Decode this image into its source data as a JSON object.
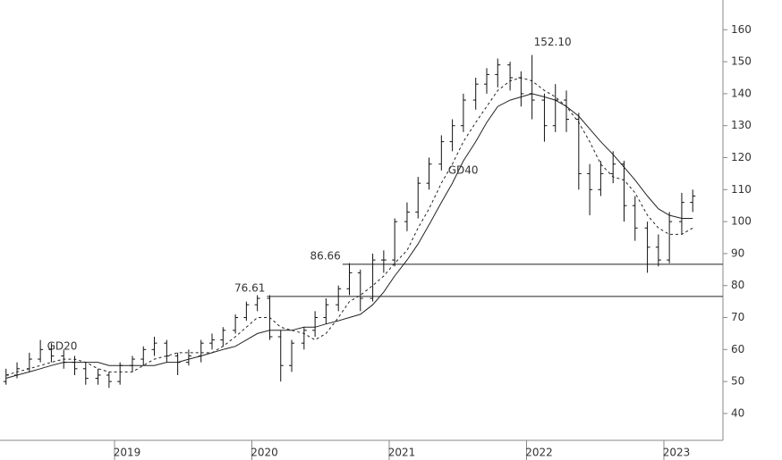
{
  "chart_data": {
    "type": "ohlc",
    "x": [
      2018.21,
      2018.29,
      2018.38,
      2018.46,
      2018.54,
      2018.63,
      2018.71,
      2018.79,
      2018.88,
      2018.96,
      2019.04,
      2019.13,
      2019.21,
      2019.29,
      2019.38,
      2019.46,
      2019.54,
      2019.63,
      2019.71,
      2019.79,
      2019.88,
      2019.96,
      2020.04,
      2020.13,
      2020.21,
      2020.29,
      2020.38,
      2020.46,
      2020.54,
      2020.63,
      2020.71,
      2020.79,
      2020.88,
      2020.96,
      2021.04,
      2021.13,
      2021.21,
      2021.29,
      2021.38,
      2021.46,
      2021.54,
      2021.63,
      2021.71,
      2021.79,
      2021.88,
      2021.96,
      2022.04,
      2022.13,
      2022.21,
      2022.29,
      2022.38,
      2022.46,
      2022.54,
      2022.63,
      2022.71,
      2022.79,
      2022.88,
      2022.96,
      2023.04,
      2023.13,
      2023.21
    ],
    "ohlc": {
      "open": [
        50,
        52,
        54,
        57,
        60,
        58,
        56,
        54,
        51,
        52,
        50,
        55,
        57,
        60,
        62,
        58,
        56,
        58,
        62,
        63,
        66,
        70,
        74,
        76,
        64,
        55,
        62,
        66,
        70,
        74,
        79,
        84,
        76,
        88,
        88,
        100,
        103,
        112,
        118,
        125,
        130,
        138,
        143,
        146,
        149,
        145,
        140,
        138,
        130,
        138,
        132,
        115,
        110,
        115,
        118,
        105,
        98,
        92,
        88,
        100,
        106
      ],
      "high": [
        54,
        56,
        59,
        63,
        62,
        60,
        58,
        56,
        54,
        53,
        56,
        58,
        61,
        64,
        63,
        59,
        60,
        63,
        65,
        67,
        71,
        75,
        77,
        77,
        66,
        63,
        67,
        72,
        76,
        80,
        87,
        85,
        90,
        91,
        101,
        106,
        114,
        120,
        127,
        132,
        140,
        145,
        148,
        151,
        150,
        147,
        152.1,
        140,
        143,
        141,
        134,
        118,
        119,
        122,
        119,
        108,
        100,
        96,
        103,
        109,
        110
      ],
      "low": [
        49,
        51,
        53,
        56,
        56,
        54,
        52,
        49,
        49,
        48,
        49,
        53,
        55,
        58,
        56,
        52,
        55,
        56,
        60,
        61,
        65,
        69,
        72,
        63,
        50,
        53,
        60,
        64,
        68,
        72,
        77,
        72,
        75,
        84,
        86,
        97,
        101,
        110,
        116,
        122,
        128,
        135,
        140,
        142,
        141,
        136,
        132,
        125,
        128,
        128,
        110,
        102,
        108,
        112,
        100,
        94,
        84,
        86,
        87,
        96,
        103
      ],
      "close": [
        52,
        54,
        57,
        60,
        58,
        56,
        54,
        51,
        52,
        50,
        55,
        57,
        60,
        62,
        58,
        56,
        58,
        62,
        63,
        66,
        70,
        74,
        76,
        64,
        55,
        62,
        66,
        70,
        74,
        79,
        84,
        76,
        88,
        88,
        100,
        103,
        112,
        118,
        125,
        130,
        138,
        143,
        146,
        149,
        145,
        140,
        138,
        130,
        138,
        132,
        115,
        110,
        115,
        118,
        105,
        98,
        92,
        88,
        100,
        106,
        108
      ]
    },
    "series": [
      {
        "name": "GD20",
        "color": "#222222",
        "dashed": true,
        "values": [
          52,
          53,
          54,
          55,
          56,
          57,
          57,
          56,
          54,
          53,
          53,
          53,
          55,
          57,
          58,
          59,
          59,
          59,
          59,
          61,
          64,
          67,
          70,
          70,
          67,
          66,
          65,
          63,
          65,
          70,
          75,
          77,
          80,
          83,
          87,
          91,
          98,
          104,
          112,
          118,
          125,
          131,
          136,
          141,
          144,
          145,
          144,
          141,
          139,
          136,
          131,
          125,
          118,
          114,
          113,
          109,
          102,
          98,
          96,
          96,
          98
        ]
      },
      {
        "name": "GD40",
        "color": "#222222",
        "dashed": false,
        "values": [
          51,
          52,
          53,
          54,
          55,
          56,
          56,
          56,
          56,
          55,
          55,
          55,
          55,
          55,
          56,
          56,
          57,
          58,
          59,
          60,
          61,
          63,
          65,
          66,
          66,
          66,
          67,
          67,
          68,
          69,
          70,
          71,
          74,
          78,
          83,
          88,
          93,
          99,
          106,
          112,
          119,
          125,
          131,
          136,
          138,
          139,
          140,
          139,
          138,
          136,
          133,
          129,
          125,
          121,
          117,
          113,
          108,
          104,
          102,
          101,
          101
        ]
      }
    ],
    "levels": [
      {
        "value": 86.66,
        "label": "86.66",
        "start": 2020.66
      },
      {
        "value": 76.61,
        "label": "76.61",
        "start": 2020.11
      }
    ],
    "peak": {
      "value": 152.1,
      "label": "152.10"
    },
    "xlim": [
      2018.166,
      2023.43
    ],
    "xticks": [
      2019,
      2020,
      2021,
      2022,
      2023
    ],
    "ylim": [
      31.6,
      169.3
    ],
    "yticks": [
      40,
      50,
      60,
      70,
      80,
      90,
      100,
      110,
      120,
      130,
      140,
      150,
      160
    ],
    "color": "#111111"
  }
}
